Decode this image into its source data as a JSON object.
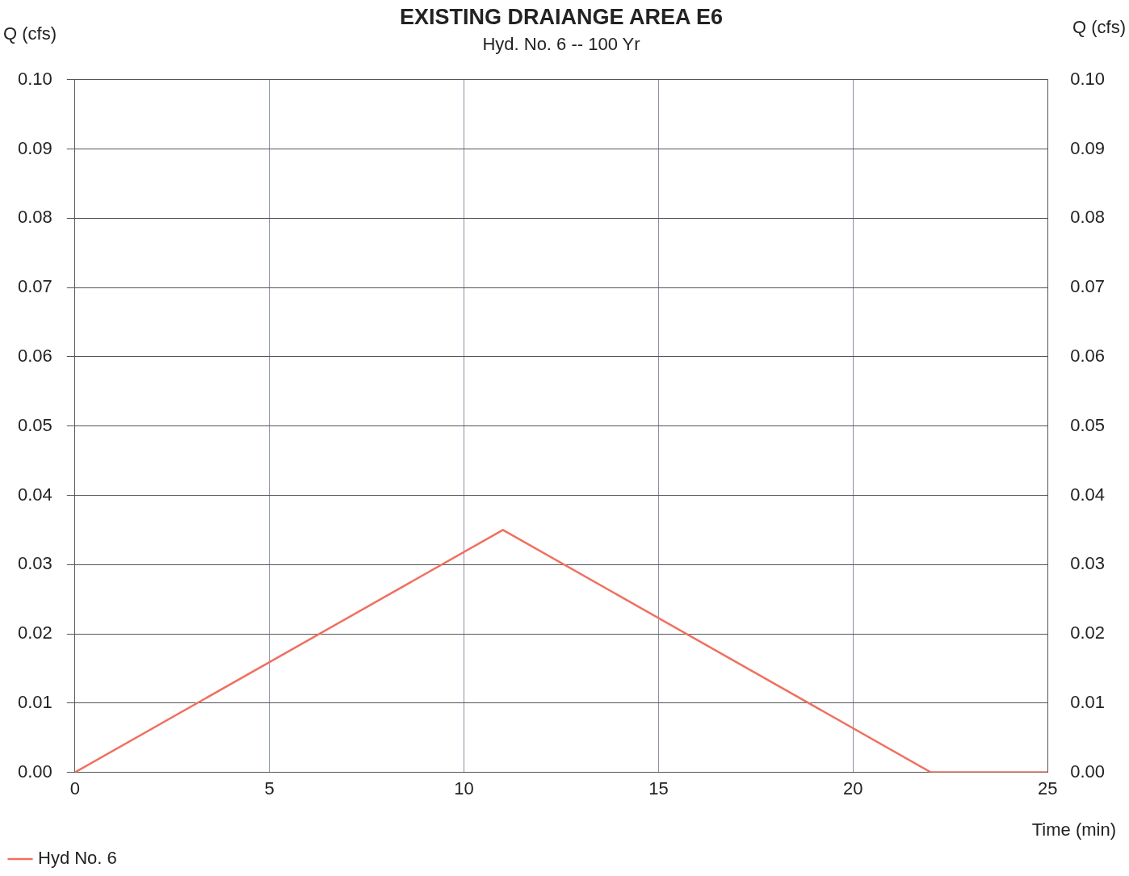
{
  "chart_data": {
    "type": "line",
    "title": "EXISTING DRAIANGE AREA E6",
    "subtitle": "Hyd. No. 6 -- 100 Yr",
    "xlabel": "Time (min)",
    "ylabel": "Q (cfs)",
    "y2label": "Q (cfs)",
    "x": [
      0,
      11,
      22,
      25
    ],
    "series": [
      {
        "name": "Hyd No. 6",
        "color": "#f07060",
        "values": [
          0,
          0.035,
          0,
          0
        ]
      }
    ],
    "xlim": [
      0,
      25
    ],
    "xticks": [
      0,
      5,
      10,
      15,
      20,
      25
    ],
    "ylim": [
      0,
      0.1
    ],
    "yticks": [
      {
        "value": 0,
        "label": "0.00"
      },
      {
        "value": 0.01,
        "label": "0.01"
      },
      {
        "value": 0.02,
        "label": "0.02"
      },
      {
        "value": 0.03,
        "label": "0.03"
      },
      {
        "value": 0.04,
        "label": "0.04"
      },
      {
        "value": 0.05,
        "label": "0.05"
      },
      {
        "value": 0.06,
        "label": "0.06"
      },
      {
        "value": 0.07,
        "label": "0.07"
      },
      {
        "value": 0.08,
        "label": "0.08"
      },
      {
        "value": 0.09,
        "label": "0.09"
      },
      {
        "value": 0.1,
        "label": "0.10"
      }
    ],
    "y2lim": [
      0,
      0.1
    ],
    "y2ticks": [
      {
        "value": 0,
        "label": "0.00"
      },
      {
        "value": 0.01,
        "label": "0.01"
      },
      {
        "value": 0.02,
        "label": "0.02"
      },
      {
        "value": 0.03,
        "label": "0.03"
      },
      {
        "value": 0.04,
        "label": "0.04"
      },
      {
        "value": 0.05,
        "label": "0.05"
      },
      {
        "value": 0.06,
        "label": "0.06"
      },
      {
        "value": 0.07,
        "label": "0.07"
      },
      {
        "value": 0.08,
        "label": "0.08"
      },
      {
        "value": 0.09,
        "label": "0.09"
      },
      {
        "value": 0.1,
        "label": "0.10"
      }
    ],
    "grid": true,
    "legend": "bottom left",
    "marker": "none",
    "line_style": "solid"
  }
}
